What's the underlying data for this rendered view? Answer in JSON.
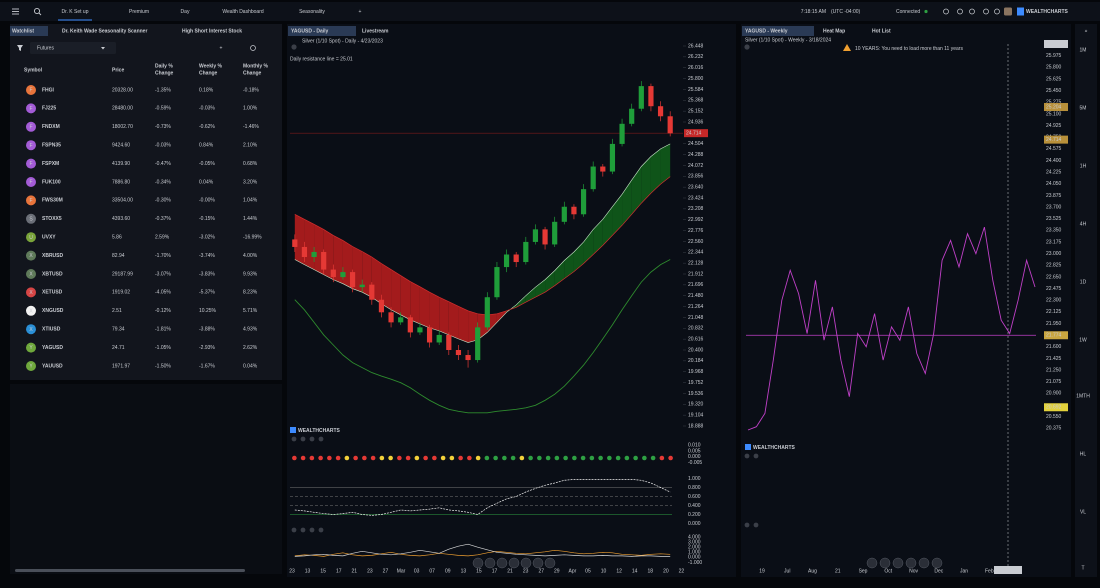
{
  "nav": {
    "tabs": [
      "Dr. K Set up",
      "Premium",
      "Day",
      "Wealth Dashboard",
      "Seasonality",
      "+"
    ],
    "time": "7:18:15 AM",
    "timezone": "(UTC -04:00)",
    "status": "Connected",
    "brand": "WEALTHCHARTS"
  },
  "watchlist": {
    "tabs": [
      "Watchlist",
      "Dr. Keith Wade Seasonality Scanner",
      "High Short Interest Stock"
    ],
    "filter": "Futures",
    "columns": [
      [
        "Symbol"
      ],
      [
        "Price"
      ],
      [
        "Daily %",
        "Change"
      ],
      [
        "Weekly %",
        "Change"
      ],
      [
        "Monthly %",
        "Change"
      ]
    ],
    "rows": [
      {
        "icon": "F",
        "icon_color": "#e8743b",
        "symbol": "FHGI",
        "price": "20328.00",
        "daily": "-1.35%",
        "weekly": "0.18%",
        "monthly": "-0.18%"
      },
      {
        "icon": "F",
        "icon_color": "#a35bd6",
        "symbol": "FJ225",
        "price": "28480.00",
        "daily": "-0.59%",
        "weekly": "-0.03%",
        "monthly": "1.00%"
      },
      {
        "icon": "F",
        "icon_color": "#a35bd6",
        "symbol": "FNDXM",
        "price": "18002.70",
        "daily": "-0.73%",
        "weekly": "-0.62%",
        "monthly": "-1.46%"
      },
      {
        "icon": "F",
        "icon_color": "#a35bd6",
        "symbol": "FSPN35",
        "price": "9424.60",
        "daily": "-0.03%",
        "weekly": "0.84%",
        "monthly": "2.10%"
      },
      {
        "icon": "F",
        "icon_color": "#a35bd6",
        "symbol": "FSPXM",
        "price": "4139.90",
        "daily": "-0.47%",
        "weekly": "-0.05%",
        "monthly": "0.68%"
      },
      {
        "icon": "F",
        "icon_color": "#a35bd6",
        "symbol": "FUK100",
        "price": "7886.80",
        "daily": "-0.34%",
        "weekly": "0.04%",
        "monthly": "3.20%"
      },
      {
        "icon": "F",
        "icon_color": "#e8743b",
        "symbol": "FWS30M",
        "price": "33504.00",
        "daily": "-0.30%",
        "weekly": "-0.00%",
        "monthly": "1.04%"
      },
      {
        "icon": "S",
        "icon_color": "#6b6f78",
        "symbol": "STOXX5",
        "price": "4393.60",
        "daily": "-0.37%",
        "weekly": "-0.15%",
        "monthly": "1.44%"
      },
      {
        "icon": "U",
        "icon_color": "#7aa43a",
        "symbol": "UVXY",
        "price": "5.86",
        "daily": "2.59%",
        "weekly": "-3.02%",
        "monthly": "-16.99%"
      },
      {
        "icon": "X",
        "icon_color": "#5f7a5a",
        "symbol": "XBRUSD",
        "price": "82.94",
        "daily": "-1.70%",
        "weekly": "-3.74%",
        "monthly": "4.00%"
      },
      {
        "icon": "X",
        "icon_color": "#5f7a5a",
        "symbol": "XBTUSD",
        "price": "29187.99",
        "daily": "-3.07%",
        "weekly": "-3.83%",
        "monthly": "9.93%"
      },
      {
        "icon": "X",
        "icon_color": "#d64545",
        "symbol": "XETUSD",
        "price": "1919.02",
        "daily": "-4.05%",
        "weekly": "-5.37%",
        "monthly": "8.23%"
      },
      {
        "icon": "X",
        "icon_color": "#f2f2f2",
        "symbol": "XNGUSD",
        "price": "2.51",
        "daily": "-0.12%",
        "weekly": "10.25%",
        "monthly": "5.71%"
      },
      {
        "icon": "X",
        "icon_color": "#2a8fd6",
        "symbol": "XTIUSD",
        "price": "79.34",
        "daily": "-1.81%",
        "weekly": "-3.88%",
        "monthly": "4.93%"
      },
      {
        "icon": "Y",
        "icon_color": "#6fa83c",
        "symbol": "YAGUSD",
        "price": "24.71",
        "daily": "-1.05%",
        "weekly": "-2.93%",
        "monthly": "2.62%"
      },
      {
        "icon": "Y",
        "icon_color": "#6fa83c",
        "symbol": "YAUUSD",
        "price": "1971.97",
        "daily": "-1.50%",
        "weekly": "-1.67%",
        "monthly": "0.04%"
      }
    ]
  },
  "daily_chart": {
    "tabs": [
      "YAGUSD - Daily",
      "Livestream"
    ],
    "subtitle": "Silver (1/10 Spot) - Daily - 4/23/2023",
    "annotation": "Daily resistance line = 25.01",
    "brand": "WEALTHCHARTS",
    "price_tag": 24.714,
    "ylim": [
      18.888,
      26.448
    ],
    "yticks": [
      26.448,
      26.232,
      26.016,
      {
        "value": 25.8,
        "label": "25.800"
      },
      25.584,
      25.368,
      25.152,
      24.936,
      24.504,
      24.288,
      24.072,
      23.856,
      {
        "value": 23.64,
        "label": "23.640"
      },
      23.424,
      23.208,
      22.992,
      22.776,
      {
        "value": 22.56,
        "label": "22.560"
      },
      22.344,
      22.128,
      21.912,
      21.696,
      {
        "value": 21.48,
        "label": "21.480"
      },
      21.264,
      21.048,
      20.832,
      20.616,
      {
        "value": 20.4,
        "label": "20.400"
      },
      20.184,
      19.968,
      19.752,
      19.536,
      {
        "value": 19.32,
        "label": "19.320"
      },
      19.104,
      18.888
    ],
    "xlabels": [
      "23",
      "13",
      "15",
      "17",
      "21",
      "23",
      "27",
      "Mar",
      "03",
      "07",
      "09",
      "13",
      "15",
      "17",
      "21",
      "23",
      "27",
      "29",
      "Apr",
      "05",
      "10",
      "12",
      "14",
      "18",
      "20",
      "22"
    ],
    "candles": [
      [
        22.6,
        22.7,
        22.35,
        22.45
      ],
      [
        22.45,
        22.55,
        22.15,
        22.25
      ],
      [
        22.25,
        22.45,
        22.15,
        22.35
      ],
      [
        22.35,
        22.4,
        21.9,
        22.0
      ],
      [
        22.0,
        22.1,
        21.75,
        21.85
      ],
      [
        21.85,
        22.05,
        21.8,
        21.95
      ],
      [
        21.95,
        22.0,
        21.55,
        21.65
      ],
      [
        21.65,
        21.8,
        21.55,
        21.7
      ],
      [
        21.7,
        21.75,
        21.3,
        21.4
      ],
      [
        21.4,
        21.5,
        21.05,
        21.15
      ],
      [
        21.15,
        21.25,
        20.85,
        20.95
      ],
      [
        20.95,
        21.15,
        20.9,
        21.05
      ],
      [
        21.05,
        21.1,
        20.65,
        20.75
      ],
      [
        20.75,
        20.95,
        20.7,
        20.85
      ],
      [
        20.85,
        20.9,
        20.45,
        20.55
      ],
      [
        20.55,
        20.8,
        20.5,
        20.7
      ],
      [
        20.7,
        20.75,
        20.3,
        20.4
      ],
      [
        20.4,
        20.5,
        20.2,
        20.3
      ],
      [
        20.3,
        20.4,
        20.05,
        20.2
      ],
      [
        20.2,
        20.95,
        20.15,
        20.85
      ],
      [
        20.85,
        21.55,
        20.8,
        21.45
      ],
      [
        21.45,
        22.15,
        21.4,
        22.05
      ],
      [
        22.05,
        22.4,
        21.95,
        22.3
      ],
      [
        22.3,
        22.35,
        22.05,
        22.15
      ],
      [
        22.15,
        22.65,
        22.1,
        22.55
      ],
      [
        22.55,
        22.9,
        22.5,
        22.8
      ],
      [
        22.8,
        22.85,
        22.4,
        22.5
      ],
      [
        22.5,
        23.05,
        22.45,
        22.95
      ],
      [
        22.95,
        23.35,
        22.9,
        23.25
      ],
      [
        23.25,
        23.3,
        23.0,
        23.1
      ],
      [
        23.1,
        23.7,
        23.05,
        23.6
      ],
      [
        23.6,
        24.15,
        23.55,
        24.05
      ],
      [
        24.05,
        24.1,
        23.85,
        23.95
      ],
      [
        23.95,
        24.6,
        23.9,
        24.5
      ],
      [
        24.5,
        25.0,
        24.45,
        24.9
      ],
      [
        24.9,
        25.3,
        24.85,
        25.2
      ],
      [
        25.2,
        25.75,
        25.15,
        25.65
      ],
      [
        25.65,
        25.7,
        25.15,
        25.25
      ],
      [
        25.25,
        25.35,
        24.95,
        25.05
      ],
      [
        25.05,
        25.15,
        24.65,
        24.71
      ]
    ],
    "ema_fast": [
      22.2,
      22.1,
      22.0,
      21.9,
      21.8,
      21.72,
      21.62,
      21.55,
      21.45,
      21.32,
      21.2,
      21.1,
      21.0,
      20.92,
      20.84,
      20.78,
      20.7,
      20.62,
      20.55,
      20.6,
      20.75,
      20.95,
      21.15,
      21.3,
      21.48,
      21.65,
      21.8,
      21.98,
      22.18,
      22.35,
      22.55,
      22.8,
      23.0,
      23.25,
      23.5,
      23.78,
      24.05,
      24.25,
      24.4,
      24.5
    ],
    "ema_slow": [
      23.1,
      23.0,
      22.9,
      22.8,
      22.68,
      22.58,
      22.46,
      22.36,
      22.25,
      22.12,
      22.0,
      21.88,
      21.76,
      21.66,
      21.55,
      21.45,
      21.36,
      21.27,
      21.18,
      21.12,
      21.1,
      21.12,
      21.18,
      21.25,
      21.35,
      21.45,
      21.55,
      21.68,
      21.82,
      21.96,
      22.12,
      22.3,
      22.48,
      22.68,
      22.88,
      23.1,
      23.32,
      23.52,
      23.7,
      23.85
    ],
    "lower_band": [
      21.4,
      21.2,
      20.95,
      20.7,
      20.5,
      20.3,
      20.15,
      20.05,
      19.95,
      19.88,
      19.82,
      19.75,
      19.65,
      19.52,
      19.4,
      19.3,
      19.22,
      19.18,
      19.15,
      19.15,
      19.15,
      19.18,
      19.2,
      19.22,
      19.25,
      19.3,
      19.4,
      19.52,
      19.68,
      19.88,
      20.1,
      20.35,
      20.62,
      20.9,
      21.2,
      21.48,
      21.75,
      21.95,
      22.1,
      22.2
    ],
    "signal_panel": {
      "yticks": [
        {
          "value": 0.01,
          "label": "0.010"
        },
        {
          "value": 0.005,
          "label": "0.005"
        },
        {
          "value": 0,
          "label": "0.000"
        },
        {
          "value": -0.005,
          "label": "-0.005"
        }
      ],
      "ylim": [
        -0.008,
        0.012
      ],
      "colors": [
        "#e53935",
        "#e53935",
        "#e53935",
        "#e53935",
        "#e53935",
        "#e53935",
        "#f2d13a",
        "#e53935",
        "#e53935",
        "#e53935",
        "#f2d13a",
        "#f2d13a",
        "#e53935",
        "#e53935",
        "#f2d13a",
        "#e53935",
        "#e53935",
        "#f2d13a",
        "#f2d13a",
        "#e53935",
        "#e53935",
        "#f2d13a",
        "#2ea043",
        "#2ea043",
        "#2ea043",
        "#2ea043",
        "#f2d13a",
        "#2ea043",
        "#2ea043",
        "#2ea043",
        "#2ea043",
        "#2ea043",
        "#2ea043",
        "#2ea043",
        "#2ea043",
        "#2ea043",
        "#2ea043",
        "#2ea043",
        "#2ea043",
        "#2ea043",
        "#2ea043",
        "#2ea043",
        "#e53935",
        "#e53935"
      ]
    },
    "oscillator": {
      "ylim": [
        -0.1,
        1.1
      ],
      "yticks": [
        {
          "value": 1,
          "label": "1.000"
        },
        {
          "value": 0.8,
          "label": "0.800"
        },
        {
          "value": 0.6,
          "label": "0.600"
        },
        {
          "value": 0.4,
          "label": "0.400"
        },
        {
          "value": 0.2,
          "label": "0.200"
        },
        {
          "value": 0,
          "label": "0.000"
        }
      ],
      "levels": [
        0.8,
        0.6,
        0.4,
        0.2
      ],
      "level_colors": [
        "#777777",
        "#777777",
        "#777777",
        "#2ea043"
      ],
      "values": [
        0.3,
        0.28,
        0.25,
        0.22,
        0.2,
        0.22,
        0.25,
        0.2,
        0.18,
        0.2,
        0.25,
        0.3,
        0.28,
        0.3,
        0.32,
        0.35,
        0.3,
        0.28,
        0.25,
        0.2,
        0.35,
        0.45,
        0.55,
        0.6,
        0.7,
        0.78,
        0.85,
        0.9,
        0.96,
        0.98,
        0.98,
        0.98,
        0.98,
        0.98,
        0.98,
        0.98,
        0.96,
        0.9,
        0.8,
        0.7
      ]
    },
    "lower_panel": {
      "ylim": [
        -1.3,
        4.4
      ],
      "yticks": [
        {
          "value": 4,
          "label": "4.000"
        },
        {
          "value": 3,
          "label": "3.000"
        },
        {
          "value": 2,
          "label": "2.000"
        },
        {
          "value": 1,
          "label": "1.000"
        },
        {
          "value": 0,
          "label": "0.000"
        },
        {
          "value": -1,
          "label": "-1.000"
        }
      ],
      "series": [
        {
          "color": "#f0a030",
          "values": [
            0.3,
            0.5,
            0.4,
            0.2,
            0.6,
            0.9,
            0.5,
            0.3,
            0.4,
            0.7,
            1.0,
            0.6,
            0.4,
            0.3,
            0.5,
            0.8,
            0.6,
            0.4,
            0.3,
            0.5,
            0.9,
            1.2,
            1.0,
            0.8,
            0.7,
            0.9,
            1.1,
            1.4,
            1.2,
            0.9,
            0.7,
            0.8,
            1.0,
            0.9,
            0.6,
            0.5,
            0.4,
            0.6,
            0.7,
            0.6
          ]
        },
        {
          "color": "#d8d8d8",
          "values": [
            0.2,
            0.3,
            0.5,
            0.6,
            0.4,
            0.3,
            0.8,
            1.2,
            0.9,
            0.6,
            0.5,
            0.7,
            1.0,
            1.4,
            1.1,
            0.8,
            1.6,
            2.2,
            2.6,
            2.0,
            1.5,
            1.0,
            0.8,
            0.6,
            0.5,
            0.4,
            0.3,
            0.4,
            0.5,
            0.4,
            0.3,
            0.3,
            0.4,
            0.3,
            0.3,
            0.2,
            0.3,
            0.3,
            0.2,
            0.2
          ]
        }
      ]
    }
  },
  "weekly_chart": {
    "tabs": [
      "YAGUSD - Weekly",
      "Heat Map",
      "Hot List"
    ],
    "subtitle": "Silver (1/10 Spot) - Weekly - 3/18/2024",
    "warning": "10 YEARS: You need to load more than 11 years",
    "brand": "WEALTHCHARTS",
    "color": "#c040c8",
    "ylim": [
      20.2,
      26.151
    ],
    "yticks": [
      25.975,
      {
        "value": 25.8,
        "label": "25.800"
      },
      25.625,
      {
        "value": 25.45,
        "label": "25.450"
      },
      25.275,
      {
        "value": 25.1,
        "label": "25.100"
      },
      24.925,
      {
        "value": 24.75,
        "label": "24.750"
      },
      24.575,
      {
        "value": 24.4,
        "label": "24.400"
      },
      24.225,
      {
        "value": 24.05,
        "label": "24.050"
      },
      23.875,
      {
        "value": 23.7,
        "label": "23.700"
      },
      23.525,
      {
        "value": 23.35,
        "label": "23.350"
      },
      23.175,
      {
        "value": 23,
        "label": "23.000"
      },
      22.825,
      {
        "value": 22.65,
        "label": "22.650"
      },
      22.475,
      {
        "value": 22.3,
        "label": "22.300"
      },
      22.125,
      {
        "value": 21.95,
        "label": "21.950"
      },
      {
        "value": 21.6,
        "label": "21.600"
      },
      21.425,
      {
        "value": 21.25,
        "label": "21.250"
      },
      21.075,
      {
        "value": 20.9,
        "label": "20.900"
      },
      {
        "value": 20.55,
        "label": "20.550"
      },
      20.375
    ],
    "price_tags": [
      {
        "value": 26.151,
        "color": "#c9ccd2"
      },
      {
        "value": 25.204,
        "color": "#b8903a"
      },
      {
        "value": 24.714,
        "color": "#b8903a"
      },
      {
        "value": 21.774,
        "color": "#c9a640"
      },
      {
        "value": 20.692,
        "color": "#e3d23c"
      }
    ],
    "horizontal_line": 21.774,
    "values": [
      20.35,
      20.4,
      20.6,
      21.4,
      22.3,
      22.75,
      22.4,
      21.8,
      22.6,
      21.7,
      22.2,
      21.4,
      20.85,
      21.8,
      21.6,
      22.1,
      21.4,
      21.9,
      21.7,
      22.2,
      21.5,
      21.2,
      21.8,
      22.9,
      23.2,
      22.8,
      23.3,
      23.0,
      23.4,
      22.6,
      22.0,
      21.8,
      22.3,
      22.9,
      22.5
    ],
    "xlabels": [
      "19",
      "Jul",
      "Aug",
      "21",
      "Sep",
      "Oct",
      "Nov",
      "Dec",
      "Jan",
      "Feb",
      "Mar"
    ],
    "cursor_date": "4/18/2024",
    "timeframes": [
      "1M",
      "5M",
      "1H",
      "4H",
      "1D",
      "1W",
      "1MTH",
      "HL",
      "VL",
      "T"
    ]
  }
}
